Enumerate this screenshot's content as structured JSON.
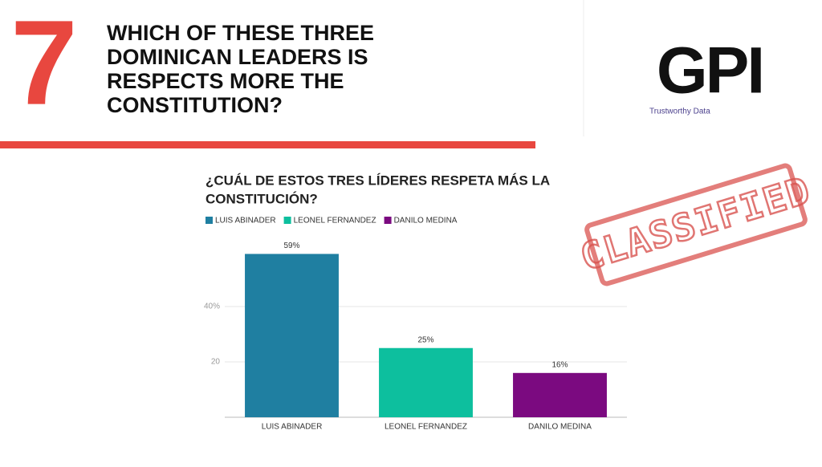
{
  "slide": {
    "number": "7",
    "question": [
      "WHICH OF THESE THREE",
      "DOMINICAN LEADERS IS",
      "RESPECTS MORE THE",
      "CONSTITUTION?"
    ],
    "logo": "GPI",
    "tagline": "Trustworthy Data",
    "stamp": "CLASSIFIED"
  },
  "chart_data": {
    "type": "bar",
    "title": [
      "¿CUÁL DE ESTOS TRES LÍDERES RESPETA MÁS LA",
      "CONSTITUCIÓN?"
    ],
    "categories": [
      "LUIS ABINADER",
      "LEONEL FERNANDEZ",
      "DANILO MEDINA"
    ],
    "values": [
      59,
      25,
      16
    ],
    "value_labels": [
      "59%",
      "25%",
      "16%"
    ],
    "colors": [
      "#1f7fa1",
      "#0dbf9e",
      "#7b0a80"
    ],
    "ylim": [
      0,
      60
    ],
    "yticks": [
      20,
      {
        "value": 40,
        "label": "40%"
      }
    ],
    "grid": true
  }
}
